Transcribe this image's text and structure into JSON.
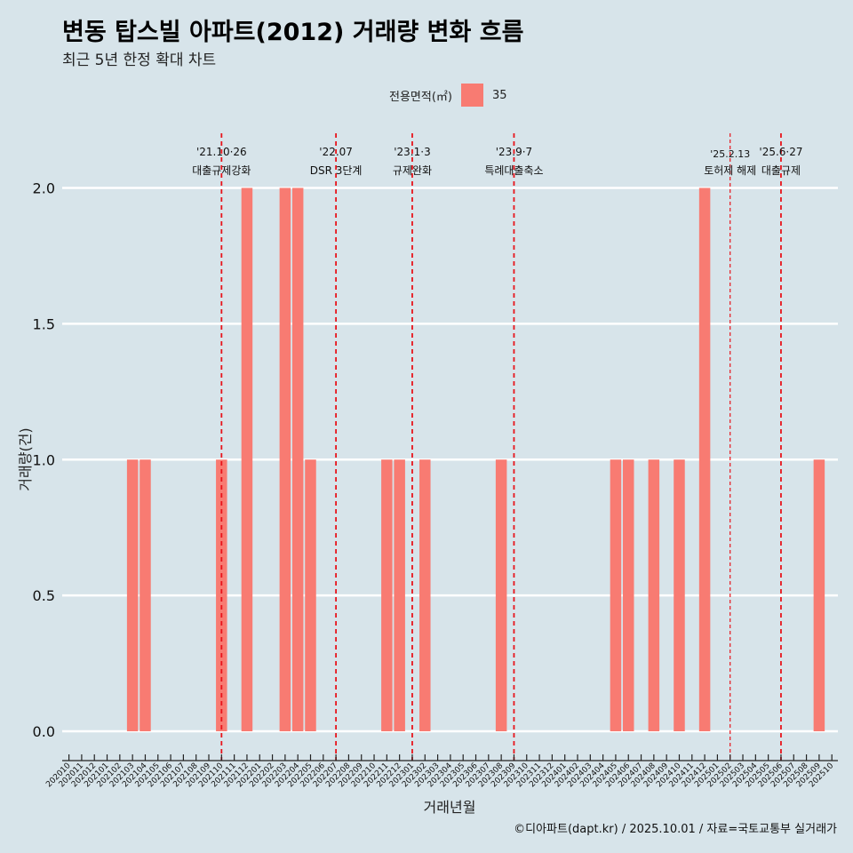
{
  "title": "변동 탑스빌 아파트(2012) 거래량 변화 흐름",
  "subtitle": "최근 5년 한정 확대 차트",
  "legend": {
    "title": "전용면적(㎡)",
    "items": [
      {
        "label": "35",
        "color": "#f87b72"
      }
    ]
  },
  "caption": "©디아파트(dapt.kr) / 2025.10.01 / 자료=국토교통부 실거래가",
  "chart_data": {
    "type": "bar",
    "xlabel": "거래년월",
    "ylabel": "거래량(건)",
    "ylim": [
      -0.1,
      2.1
    ],
    "yticks": [
      "0.0",
      "0.5",
      "1.0",
      "1.5",
      "2.0"
    ],
    "categories": [
      "202010",
      "202011",
      "202012",
      "202101",
      "202102",
      "202103",
      "202104",
      "202105",
      "202106",
      "202107",
      "202108",
      "202109",
      "202110",
      "202111",
      "202112",
      "202201",
      "202202",
      "202203",
      "202204",
      "202205",
      "202206",
      "202207",
      "202208",
      "202209",
      "202210",
      "202211",
      "202212",
      "202301",
      "202302",
      "202303",
      "202304",
      "202305",
      "202306",
      "202307",
      "202308",
      "202309",
      "202310",
      "202311",
      "202312",
      "202401",
      "202402",
      "202403",
      "202404",
      "202405",
      "202406",
      "202407",
      "202408",
      "202409",
      "202410",
      "202411",
      "202412",
      "202501",
      "202502",
      "202503",
      "202504",
      "202505",
      "202506",
      "202507",
      "202508",
      "202509",
      "202510"
    ],
    "bars": [
      {
        "month": "202103",
        "value": 1
      },
      {
        "month": "202104",
        "value": 1
      },
      {
        "month": "202110",
        "value": 1
      },
      {
        "month": "202112",
        "value": 2
      },
      {
        "month": "202203",
        "value": 2
      },
      {
        "month": "202204",
        "value": 2
      },
      {
        "month": "202205",
        "value": 1
      },
      {
        "month": "202211",
        "value": 1
      },
      {
        "month": "202212",
        "value": 1
      },
      {
        "month": "202302",
        "value": 1
      },
      {
        "month": "202308",
        "value": 1
      },
      {
        "month": "202405",
        "value": 1
      },
      {
        "month": "202406",
        "value": 1
      },
      {
        "month": "202408",
        "value": 1
      },
      {
        "month": "202410",
        "value": 1
      },
      {
        "month": "202412",
        "value": 2
      },
      {
        "month": "202509",
        "value": 1
      }
    ],
    "series_name": "35",
    "bar_color": "#f87b72",
    "events": [
      {
        "month": "202110",
        "date": "'21.10·26",
        "label": "대출규제강화",
        "style": "dashed"
      },
      {
        "month": "202207",
        "date": "'22.07",
        "label": "DSR 3단계",
        "style": "dashed"
      },
      {
        "month": "202301",
        "date": "'23.1·3",
        "label": "규제완화",
        "style": "dashed"
      },
      {
        "month": "202309",
        "date": "'23.9·7",
        "label": "특례대출축소",
        "style": "dashed"
      },
      {
        "month": "202502",
        "date": "'25.2.13",
        "label": "토허제 해제",
        "style": "thin"
      },
      {
        "month": "202506",
        "date": "'25.6·27",
        "label": "대출규제",
        "style": "dashed"
      }
    ]
  }
}
